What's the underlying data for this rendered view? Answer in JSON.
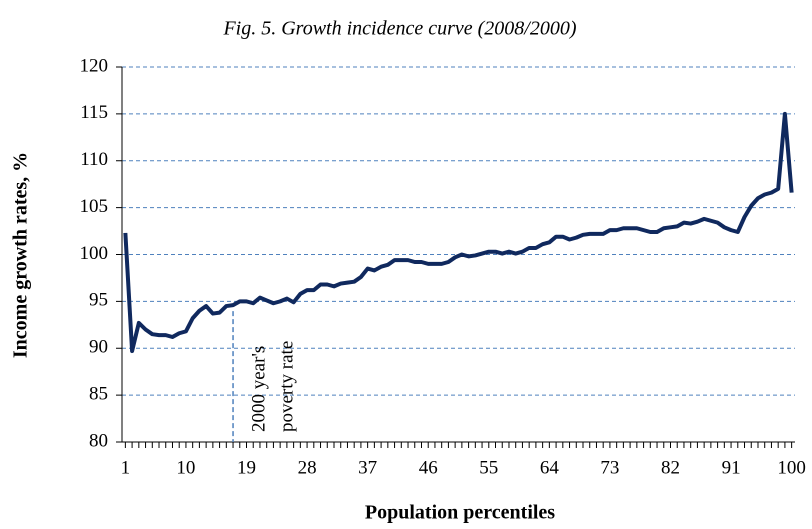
{
  "chart_data": {
    "type": "line",
    "title": "Fig. 5. Growth incidence curve (2008/2000)",
    "x_label": "Population percentiles",
    "y_label": "Income growth  rates, %",
    "x": [
      1,
      2,
      3,
      4,
      5,
      6,
      7,
      8,
      9,
      10,
      11,
      12,
      13,
      14,
      15,
      16,
      17,
      18,
      19,
      20,
      21,
      22,
      23,
      24,
      25,
      26,
      27,
      28,
      29,
      30,
      31,
      32,
      33,
      34,
      35,
      36,
      37,
      38,
      39,
      40,
      41,
      42,
      43,
      44,
      45,
      46,
      47,
      48,
      49,
      50,
      51,
      52,
      53,
      54,
      55,
      56,
      57,
      58,
      59,
      60,
      61,
      62,
      63,
      64,
      65,
      66,
      67,
      68,
      69,
      70,
      71,
      72,
      73,
      74,
      75,
      76,
      77,
      78,
      79,
      80,
      81,
      82,
      83,
      84,
      85,
      86,
      87,
      88,
      89,
      90,
      91,
      92,
      93,
      94,
      95,
      96,
      97,
      98,
      99,
      100
    ],
    "series": [
      {
        "name": "Income growth rate",
        "color": "#10295e",
        "values": [
          102.3,
          89.7,
          92.7,
          92.0,
          91.5,
          91.4,
          91.4,
          91.2,
          91.6,
          91.8,
          93.2,
          94.0,
          94.5,
          93.7,
          93.8,
          94.5,
          94.6,
          95.0,
          95.0,
          94.8,
          95.4,
          95.1,
          94.8,
          95.0,
          95.3,
          94.9,
          95.8,
          96.2,
          96.2,
          96.8,
          96.8,
          96.6,
          96.9,
          97.0,
          97.1,
          97.6,
          98.5,
          98.3,
          98.7,
          98.9,
          99.4,
          99.4,
          99.4,
          99.2,
          99.2,
          99.0,
          99.0,
          99.0,
          99.2,
          99.7,
          100.0,
          99.8,
          99.9,
          100.1,
          100.3,
          100.3,
          100.1,
          100.3,
          100.1,
          100.3,
          100.7,
          100.7,
          101.1,
          101.3,
          101.9,
          101.9,
          101.6,
          101.8,
          102.1,
          102.2,
          102.2,
          102.2,
          102.6,
          102.6,
          102.8,
          102.8,
          102.8,
          102.6,
          102.4,
          102.4,
          102.8,
          102.9,
          103.0,
          103.4,
          103.3,
          103.5,
          103.8,
          103.6,
          103.4,
          102.9,
          102.6,
          102.4,
          104.0,
          105.2,
          106.0,
          106.4,
          106.6,
          107.0,
          115.0,
          106.6
        ]
      }
    ],
    "xlim": [
      0.5,
      100.5
    ],
    "xticks": [
      1,
      10,
      19,
      28,
      37,
      46,
      55,
      64,
      73,
      82,
      91,
      100
    ],
    "ylim": [
      80,
      120
    ],
    "yticks": [
      80,
      85,
      90,
      95,
      100,
      105,
      110,
      115,
      120
    ],
    "grid": true,
    "grid_color": "#4f81bd",
    "annotations": [
      {
        "x": 17,
        "lines": [
          "2000 year's",
          "poverty rate"
        ]
      }
    ]
  }
}
